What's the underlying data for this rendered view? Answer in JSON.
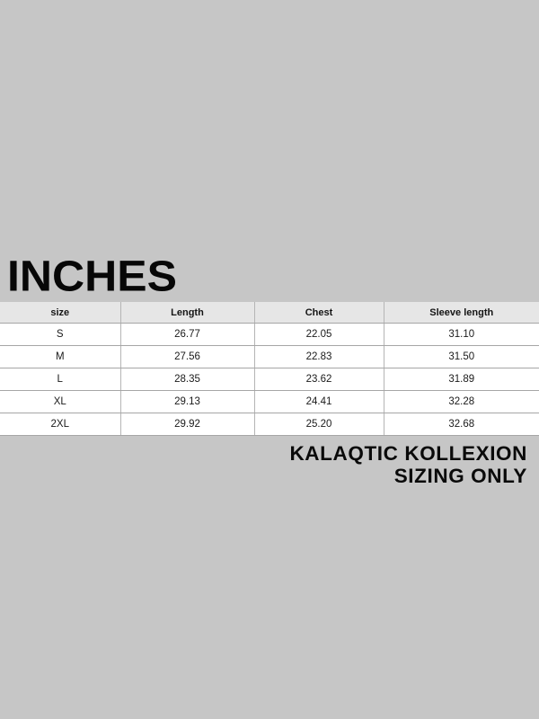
{
  "page": {
    "title": "INCHES",
    "colors": {
      "background": "#c6c6c6",
      "table_header_bg": "#e6e6e6",
      "table_row_bg": "#ffffff",
      "table_border": "#a6a6a6",
      "text": "#0a0a0a"
    }
  },
  "table": {
    "headers": [
      "size",
      "Length",
      "Chest",
      "Sleeve length"
    ],
    "rows": [
      [
        "S",
        "26.77",
        "22.05",
        "31.10"
      ],
      [
        "M",
        "27.56",
        "22.83",
        "31.50"
      ],
      [
        "L",
        "28.35",
        "23.62",
        "31.89"
      ],
      [
        "XL",
        "29.13",
        "24.41",
        "32.28"
      ],
      [
        "2XL",
        "29.92",
        "25.20",
        "32.68"
      ]
    ]
  },
  "footer": {
    "line1": "KALAQTIC KOLLEXION",
    "line2": "SIZING ONLY"
  },
  "chart_data": {
    "type": "table",
    "title": "INCHES",
    "unit": "inches",
    "columns": [
      "size",
      "Length",
      "Chest",
      "Sleeve length"
    ],
    "categories": [
      "S",
      "M",
      "L",
      "XL",
      "2XL"
    ],
    "series": [
      {
        "name": "Length",
        "values": [
          26.77,
          27.56,
          28.35,
          29.13,
          29.92
        ]
      },
      {
        "name": "Chest",
        "values": [
          22.05,
          22.83,
          23.62,
          24.41,
          25.2
        ]
      },
      {
        "name": "Sleeve length",
        "values": [
          31.1,
          31.5,
          31.89,
          32.28,
          32.68
        ]
      }
    ],
    "annotations": [
      "KALAQTIC KOLLEXION",
      "SIZING ONLY"
    ],
    "layout": {
      "grid": true,
      "header_row": true,
      "full_bleed_width": true
    }
  }
}
